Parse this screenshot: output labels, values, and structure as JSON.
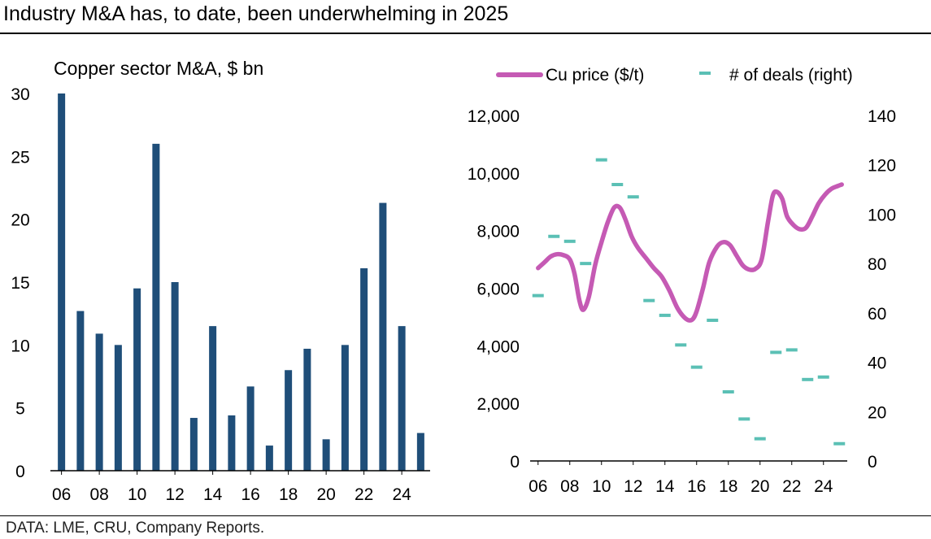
{
  "header": {
    "title": "Industry M&A has, to date, been underwhelming in 2025"
  },
  "footer": {
    "source": "DATA: LME, CRU, Company Reports."
  },
  "colors": {
    "bar": "#1F4E79",
    "price_line": "#C55AB4",
    "deals_marker": "#5BC0B5",
    "axis": "#000000"
  },
  "chart_data": [
    {
      "type": "bar",
      "title": "Copper sector M&A, $ bn",
      "categories": [
        "06",
        "07",
        "08",
        "09",
        "10",
        "11",
        "12",
        "13",
        "14",
        "15",
        "16",
        "17",
        "18",
        "19",
        "20",
        "21",
        "22",
        "23",
        "24",
        "25"
      ],
      "values": [
        30,
        12.7,
        10.9,
        10,
        14.5,
        26,
        15,
        4.2,
        11.5,
        4.4,
        6.7,
        2,
        8,
        9.7,
        2.5,
        10,
        16.1,
        21.3,
        11.5,
        3
      ],
      "ylim": [
        0,
        30
      ],
      "yticks": [
        "0",
        "5",
        "10",
        "15",
        "20",
        "25",
        "30"
      ],
      "xticklabels": [
        "06",
        "08",
        "10",
        "12",
        "14",
        "16",
        "18",
        "20",
        "22",
        "24"
      ],
      "grid": false
    },
    {
      "type": "line",
      "legend_placement": "top",
      "categories": [
        "06",
        "07",
        "08",
        "09",
        "10",
        "11",
        "12",
        "13",
        "14",
        "15",
        "16",
        "17",
        "18",
        "19",
        "20",
        "21",
        "22",
        "23",
        "24",
        "25"
      ],
      "series": [
        {
          "name": "Cu price ($/t)",
          "axis": "left",
          "style": "line",
          "x": [
            2006.0,
            2006.4,
            2006.8,
            2007.2,
            2007.6,
            2008.0,
            2008.3,
            2008.6,
            2008.85,
            2009.2,
            2009.6,
            2010.0,
            2010.4,
            2010.8,
            2011.15,
            2011.5,
            2011.9,
            2012.3,
            2012.8,
            2013.3,
            2013.8,
            2014.3,
            2014.8,
            2015.3,
            2015.7,
            2016.0,
            2016.4,
            2016.8,
            2017.3,
            2017.7,
            2018.1,
            2018.5,
            2018.9,
            2019.3,
            2019.7,
            2020.1,
            2020.5,
            2020.8,
            2021.05,
            2021.4,
            2021.7,
            2022.1,
            2022.5,
            2022.9,
            2023.3,
            2023.7,
            2024.1,
            2024.5,
            2024.9,
            2025.15
          ],
          "y": [
            6700,
            6900,
            7100,
            7180,
            7150,
            7000,
            6500,
            5600,
            5250,
            5700,
            6800,
            7600,
            8300,
            8800,
            8800,
            8400,
            7800,
            7400,
            7050,
            6700,
            6400,
            5900,
            5300,
            4950,
            4900,
            5200,
            6000,
            6900,
            7450,
            7600,
            7500,
            7150,
            6800,
            6650,
            6670,
            7000,
            8300,
            9200,
            9350,
            9100,
            8500,
            8200,
            8050,
            8100,
            8500,
            8950,
            9250,
            9450,
            9550,
            9600
          ]
        },
        {
          "name": "# of deals (right)",
          "axis": "right",
          "style": "dash-marker",
          "x": [
            2006,
            2007,
            2008,
            2009,
            2010,
            2011,
            2012,
            2013,
            2014,
            2015,
            2016,
            2017,
            2018,
            2019,
            2020,
            2021,
            2022,
            2023,
            2024,
            2025
          ],
          "values": [
            67,
            91,
            89,
            80,
            122,
            112,
            107,
            65,
            59,
            47,
            38,
            57,
            28,
            17,
            9,
            44,
            45,
            33,
            34,
            7
          ]
        }
      ],
      "ylim_left": [
        0,
        12000
      ],
      "yticks_left": [
        "0",
        "2,000",
        "4,000",
        "6,000",
        "8,000",
        "10,000",
        "12,000"
      ],
      "ylim_right": [
        0,
        140
      ],
      "yticks_right": [
        "0",
        "20",
        "40",
        "60",
        "80",
        "100",
        "120",
        "140"
      ],
      "xticklabels": [
        "06",
        "08",
        "10",
        "12",
        "14",
        "16",
        "18",
        "20",
        "22",
        "24"
      ],
      "grid": false
    }
  ]
}
